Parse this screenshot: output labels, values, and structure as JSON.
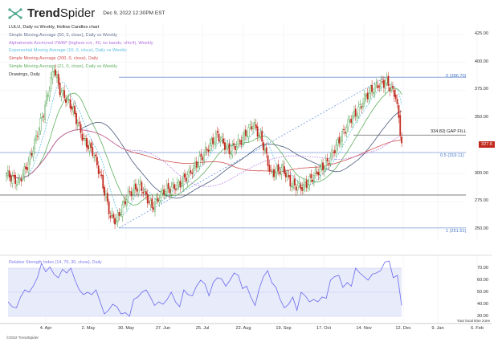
{
  "header": {
    "brand_bold": "Trend",
    "brand_light": "Spider",
    "datetime": "Dec 9, 2022 12:30PM EST"
  },
  "legend": [
    {
      "text": "LULU, Daily vs Weekly, Hollow Candles chart",
      "color": "#222222"
    },
    {
      "text": "Simple Moving Average (50, 0, close), Daily vs Weekly",
      "color": "#4a5a7a"
    },
    {
      "text": "Alphatrends Anchored VWAP (highest vol., 40, no bands, ohlc4), Weekly",
      "color": "#b070e0"
    },
    {
      "text": "Exponential Moving Average (10, 0, close), Daily vs Weekly",
      "color": "#60c0e0"
    },
    {
      "text": "Simple Moving Average (200, 0, close), Daily",
      "color": "#d05050"
    },
    {
      "text": "Simple Moving Average (21, 0, close), Daily vs Weekly",
      "color": "#60b060"
    },
    {
      "text": "Drawings, Daily",
      "color": "#333333"
    }
  ],
  "price_tag": "327.6",
  "gap_fill_label": "334.82| GAP FILL",
  "footer": "©2022 TrendSpider",
  "timezone_note": "Your local time zone",
  "chart_data": [
    {
      "type": "candlestick",
      "title": "LULU, Daily vs Weekly, Hollow Candles chart",
      "y_ticks": [
        "425.00",
        "400.00",
        "375.00",
        "350.00",
        "300.00",
        "275.00",
        "250.00"
      ],
      "ylim": [
        245,
        430
      ],
      "x_ticks": [
        "4. Apr",
        "2. May",
        "30. May",
        "27. Jun",
        "25. Jul",
        "22. Aug",
        "19. Sep",
        "17. Oct",
        "14. Nov",
        "12. Dec",
        "9. Jan",
        "6. Feb"
      ],
      "close_waypoints": [
        [
          0,
          300
        ],
        [
          8,
          292
        ],
        [
          15,
          310
        ],
        [
          25,
          355
        ],
        [
          32,
          395
        ],
        [
          36,
          375
        ],
        [
          44,
          360
        ],
        [
          52,
          330
        ],
        [
          58,
          320
        ],
        [
          63,
          300
        ],
        [
          70,
          262
        ],
        [
          74,
          258
        ],
        [
          82,
          282
        ],
        [
          90,
          290
        ],
        [
          98,
          270
        ],
        [
          106,
          285
        ],
        [
          116,
          290
        ],
        [
          126,
          305
        ],
        [
          134,
          320
        ],
        [
          142,
          335
        ],
        [
          150,
          320
        ],
        [
          158,
          330
        ],
        [
          166,
          345
        ],
        [
          172,
          330
        ],
        [
          178,
          300
        ],
        [
          186,
          305
        ],
        [
          192,
          290
        ],
        [
          200,
          288
        ],
        [
          208,
          300
        ],
        [
          216,
          310
        ],
        [
          224,
          330
        ],
        [
          232,
          350
        ],
        [
          236,
          355
        ],
        [
          242,
          370
        ],
        [
          250,
          380
        ],
        [
          256,
          382
        ],
        [
          262,
          370
        ],
        [
          266,
          327.6
        ]
      ],
      "fibonacci": [
        {
          "label": "0 (386.70)",
          "value": 386.7
        },
        {
          "label": "0.5 (319.11)",
          "value": 319.11
        },
        {
          "label": "1 (251.51)",
          "value": 251.51
        }
      ],
      "gap_fill": 334.82,
      "support": 281,
      "last": 327.6
    },
    {
      "type": "line",
      "title": "Relative Strength Index (14, 70, 30, close), Daily",
      "y_ticks": [
        "70.00",
        "60.00",
        "50.00",
        "40.00",
        "30.00"
      ],
      "ylim": [
        28,
        78
      ],
      "band": [
        30,
        70
      ],
      "values": [
        42,
        38,
        37,
        46,
        52,
        50,
        55,
        62,
        74,
        67,
        71,
        65,
        62,
        69,
        66,
        70,
        60,
        52,
        48,
        50,
        48,
        52,
        42,
        32,
        35,
        40,
        38,
        32,
        33,
        30,
        44,
        46,
        50,
        52,
        46,
        39,
        42,
        40,
        44,
        50,
        42,
        38,
        52,
        48,
        47,
        55,
        60,
        57,
        47,
        58,
        62,
        61,
        55,
        60,
        66,
        64,
        53,
        55,
        46,
        39,
        53,
        63,
        68,
        58,
        54,
        44,
        37,
        40,
        46,
        35,
        50,
        47,
        42,
        44,
        42,
        46,
        45,
        60,
        63,
        64,
        54,
        58,
        55,
        70,
        66,
        63,
        60,
        65,
        66,
        68,
        75,
        76,
        62,
        64,
        39
      ]
    }
  ]
}
